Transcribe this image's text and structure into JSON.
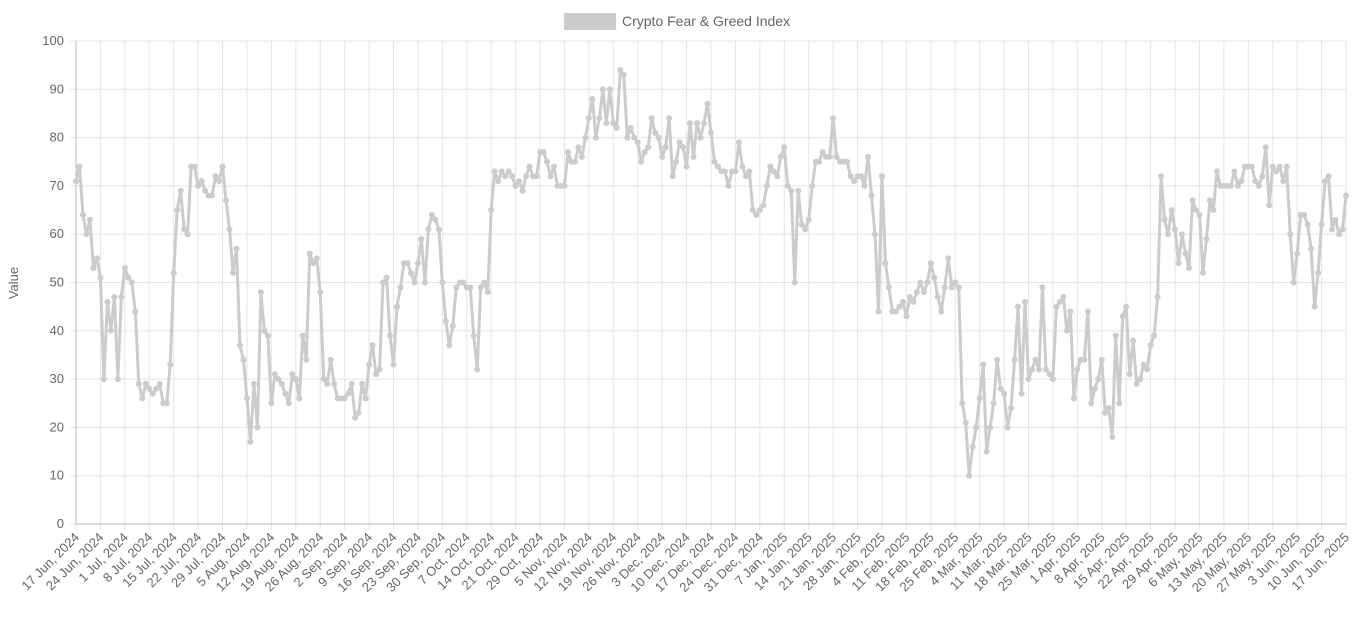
{
  "chart_data": {
    "type": "line",
    "y_label": "Value",
    "ylim": [
      0,
      100
    ],
    "yticks": [
      0,
      10,
      20,
      30,
      40,
      50,
      60,
      70,
      80,
      90,
      100
    ],
    "grid": true,
    "legend": "top",
    "categories": [
      "17 Jun, 2024",
      null,
      null,
      null,
      null,
      null,
      null,
      "24 Jun, 2024",
      null,
      null,
      null,
      null,
      null,
      null,
      "1 Jul, 2024",
      null,
      null,
      null,
      null,
      null,
      null,
      "8 Jul, 2024",
      null,
      null,
      null,
      null,
      null,
      null,
      "15 Jul, 2024",
      null,
      null,
      null,
      null,
      null,
      null,
      "22 Jul, 2024",
      null,
      null,
      null,
      null,
      null,
      null,
      "29 Jul, 2024",
      null,
      null,
      null,
      null,
      null,
      null,
      "5 Aug, 2024",
      null,
      null,
      null,
      null,
      null,
      null,
      "12 Aug, 2024",
      null,
      null,
      null,
      null,
      null,
      null,
      "19 Aug, 2024",
      null,
      null,
      null,
      null,
      null,
      null,
      "26 Aug, 2024",
      null,
      null,
      null,
      null,
      null,
      null,
      "2 Sep, 2024",
      null,
      null,
      null,
      null,
      null,
      null,
      "9 Sep, 2024",
      null,
      null,
      null,
      null,
      null,
      null,
      "16 Sep, 2024",
      null,
      null,
      null,
      null,
      null,
      null,
      "23 Sep, 2024",
      null,
      null,
      null,
      null,
      null,
      null,
      "30 Sep, 2024",
      null,
      null,
      null,
      null,
      null,
      null,
      "7 Oct, 2024",
      null,
      null,
      null,
      null,
      null,
      null,
      "14 Oct, 2024",
      null,
      null,
      null,
      null,
      null,
      null,
      "21 Oct, 2024",
      null,
      null,
      null,
      null,
      null,
      null,
      "29 Oct, 2024",
      null,
      null,
      null,
      null,
      null,
      null,
      "5 Nov, 2024",
      null,
      null,
      null,
      null,
      null,
      null,
      "12 Nov, 2024",
      null,
      null,
      null,
      null,
      null,
      null,
      "19 Nov, 2024",
      null,
      null,
      null,
      null,
      null,
      null,
      "26 Nov, 2024",
      null,
      null,
      null,
      null,
      null,
      null,
      "3 Dec, 2024",
      null,
      null,
      null,
      null,
      null,
      null,
      "10 Dec, 2024",
      null,
      null,
      null,
      null,
      null,
      null,
      "17 Dec, 2024",
      null,
      null,
      null,
      null,
      null,
      null,
      "24 Dec, 2024",
      null,
      null,
      null,
      null,
      null,
      null,
      "31 Dec, 2024",
      null,
      null,
      null,
      null,
      null,
      null,
      "7 Jan, 2025",
      null,
      null,
      null,
      null,
      null,
      null,
      "14 Jan, 2025",
      null,
      null,
      null,
      null,
      null,
      null,
      "21 Jan, 2025",
      null,
      null,
      null,
      null,
      null,
      null,
      "28 Jan, 2025",
      null,
      null,
      null,
      null,
      null,
      null,
      "4 Feb, 2025",
      null,
      null,
      null,
      null,
      null,
      null,
      "11 Feb, 2025",
      null,
      null,
      null,
      null,
      null,
      null,
      "18 Feb, 2025",
      null,
      null,
      null,
      null,
      null,
      null,
      "25 Feb, 2025",
      null,
      null,
      null,
      null,
      null,
      null,
      "4 Mar, 2025",
      null,
      null,
      null,
      null,
      null,
      null,
      "11 Mar, 2025",
      null,
      null,
      null,
      null,
      null,
      null,
      "18 Mar, 2025",
      null,
      null,
      null,
      null,
      null,
      null,
      "25 Mar, 2025",
      null,
      null,
      null,
      null,
      null,
      null,
      "1 Apr, 2025",
      null,
      null,
      null,
      null,
      null,
      null,
      "8 Apr, 2025",
      null,
      null,
      null,
      null,
      null,
      null,
      "15 Apr, 2025",
      null,
      null,
      null,
      null,
      null,
      null,
      "22 Apr, 2025",
      null,
      null,
      null,
      null,
      null,
      null,
      "29 Apr, 2025",
      null,
      null,
      null,
      null,
      null,
      null,
      "6 May, 2025",
      null,
      null,
      null,
      null,
      null,
      null,
      "13 May, 2025",
      null,
      null,
      null,
      null,
      null,
      null,
      "20 May, 2025",
      null,
      null,
      null,
      null,
      null,
      null,
      "27 May, 2025",
      null,
      null,
      null,
      null,
      null,
      null,
      "3 Jun, 2025",
      null,
      null,
      null,
      null,
      null,
      null,
      "10 Jun, 2025",
      null,
      null,
      null,
      null,
      null,
      null,
      "17 Jun, 2025"
    ],
    "series": [
      {
        "name": "Crypto Fear & Greed Index",
        "color": "#cccccc",
        "values": [
          71,
          74,
          64,
          60,
          63,
          53,
          55,
          51,
          30,
          46,
          40,
          47,
          30,
          47,
          53,
          51,
          50,
          44,
          29,
          26,
          29,
          28,
          27,
          28,
          29,
          25,
          25,
          33,
          52,
          65,
          69,
          61,
          60,
          74,
          74,
          70,
          71,
          69,
          68,
          68,
          72,
          71,
          74,
          67,
          61,
          52,
          57,
          37,
          34,
          26,
          17,
          29,
          20,
          48,
          40,
          39,
          25,
          31,
          30,
          29,
          27,
          25,
          31,
          30,
          26,
          39,
          34,
          56,
          54,
          55,
          48,
          30,
          29,
          34,
          29,
          26,
          26,
          26,
          27,
          29,
          22,
          23,
          29,
          26,
          33,
          37,
          31,
          32,
          50,
          51,
          39,
          33,
          45,
          49,
          54,
          54,
          52,
          50,
          54,
          59,
          50,
          61,
          64,
          63,
          61,
          50,
          42,
          37,
          41,
          49,
          50,
          50,
          49,
          49,
          39,
          32,
          49,
          50,
          48,
          65,
          73,
          71,
          73,
          72,
          73,
          72,
          70,
          71,
          69,
          72,
          74,
          72,
          72,
          77,
          77,
          75,
          72,
          74,
          70,
          70,
          70,
          77,
          75,
          75,
          78,
          76,
          80,
          84,
          88,
          80,
          84,
          90,
          83,
          90,
          83,
          82,
          94,
          93,
          80,
          82,
          80,
          79,
          75,
          77,
          78,
          84,
          81,
          80,
          76,
          78,
          84,
          72,
          75,
          79,
          78,
          74,
          83,
          76,
          83,
          80,
          83,
          87,
          81,
          75,
          74,
          73,
          73,
          70,
          73,
          73,
          79,
          74,
          72,
          73,
          65,
          64,
          65,
          66,
          70,
          74,
          73,
          72,
          76,
          78,
          70,
          69,
          50,
          69,
          62,
          61,
          63,
          70,
          75,
          75,
          77,
          76,
          76,
          84,
          76,
          75,
          75,
          75,
          72,
          71,
          72,
          72,
          70,
          76,
          68,
          60,
          44,
          72,
          54,
          49,
          44,
          44,
          45,
          46,
          43,
          47,
          46,
          48,
          50,
          48,
          50,
          54,
          51,
          47,
          44,
          49,
          55,
          49,
          50,
          49,
          25,
          21,
          10,
          16,
          20,
          26,
          33,
          15,
          20,
          25,
          34,
          28,
          27,
          20,
          24,
          34,
          45,
          27,
          46,
          30,
          32,
          34,
          32,
          49,
          32,
          31,
          30,
          45,
          46,
          47,
          40,
          44,
          26,
          32,
          34,
          34,
          44,
          25,
          28,
          30,
          34,
          23,
          24,
          18,
          39,
          25,
          43,
          45,
          31,
          38,
          29,
          30,
          33,
          32,
          37,
          39,
          47,
          72,
          63,
          60,
          65,
          61,
          54,
          60,
          56,
          53,
          67,
          65,
          64,
          52,
          59,
          67,
          65,
          73,
          70,
          70,
          70,
          70,
          73,
          70,
          71,
          74,
          74,
          74,
          71,
          70,
          72,
          78,
          66,
          74,
          73,
          74,
          71,
          74,
          60,
          50,
          56,
          64,
          64,
          62,
          57,
          45,
          52,
          62,
          71,
          72,
          61,
          63,
          60,
          61,
          68
        ]
      }
    ]
  }
}
